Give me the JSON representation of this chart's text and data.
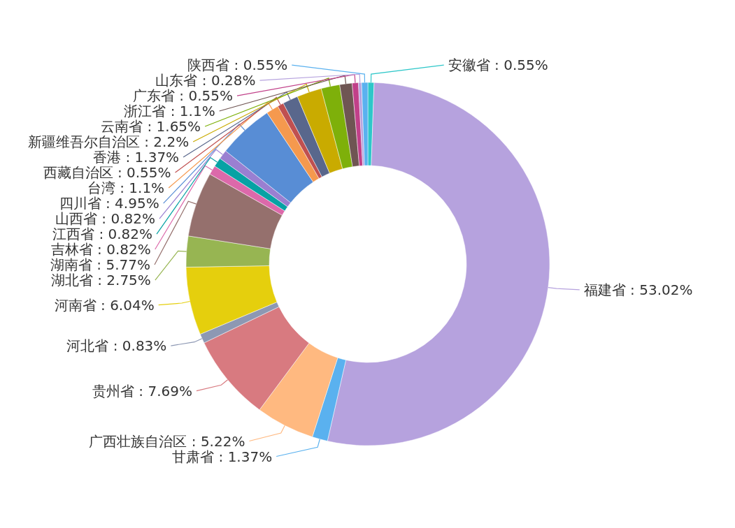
{
  "chart_data": {
    "type": "donut",
    "categories": [
      "安徽省",
      "福建省",
      "甘肃省",
      "广西壮族自治区",
      "贵州省",
      "河北省",
      "河南省",
      "湖北省",
      "湖南省",
      "吉林省",
      "江西省",
      "山西省",
      "四川省",
      "台湾",
      "西藏自治区",
      "香港",
      "新疆维吾尔自治区",
      "云南省",
      "浙江省",
      "广东省",
      "山东省",
      "陕西省"
    ],
    "values": [
      0.55,
      53.02,
      1.37,
      5.22,
      7.69,
      0.83,
      6.04,
      2.75,
      5.77,
      0.82,
      0.82,
      0.82,
      4.95,
      1.1,
      0.55,
      1.37,
      2.2,
      1.65,
      1.1,
      0.55,
      0.28,
      0.55
    ],
    "value_labels": [
      "0.55%",
      "53.02%",
      "1.37%",
      "5.22%",
      "7.69%",
      "0.83%",
      "6.04%",
      "2.75%",
      "5.77%",
      "0.82%",
      "0.82%",
      "0.82%",
      "4.95%",
      "1.1%",
      "0.55%",
      "1.37%",
      "2.2%",
      "1.65%",
      "1.1%",
      "0.55%",
      "0.28%",
      "0.55%"
    ],
    "colors": [
      "#2ec7c9",
      "#b6a2de",
      "#5ab1ef",
      "#ffb980",
      "#d87a80",
      "#8d98b3",
      "#e5cf0d",
      "#97b552",
      "#95706d",
      "#dc69aa",
      "#07a2a4",
      "#9a7fd1",
      "#588dd5",
      "#f5994e",
      "#c05050",
      "#59678c",
      "#c9ab00",
      "#7eb00a",
      "#6f5553",
      "#c14089",
      "#b6a2de",
      "#5ab1ef"
    ]
  }
}
